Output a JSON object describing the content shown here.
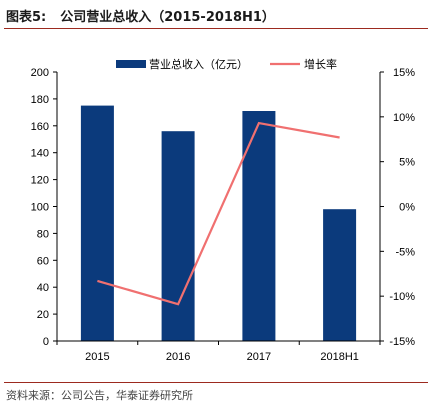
{
  "figure": {
    "number_label": "图表5:",
    "title": "公司营业总收入（2015-2018H1）",
    "source": "资料来源：公司公告，华泰证券研究所"
  },
  "colors": {
    "bar": "#0b3a7c",
    "line": "#f07070",
    "rule": "#9c2a1f"
  },
  "chart_data": {
    "type": "bar",
    "categories": [
      "2015",
      "2016",
      "2017",
      "2018H1"
    ],
    "series": [
      {
        "name": "营业总收入（亿元）",
        "type": "bar",
        "axis": "left",
        "values": [
          175,
          156,
          171,
          98
        ]
      },
      {
        "name": "增长率",
        "type": "line",
        "axis": "right",
        "values": [
          -8.3,
          -10.9,
          9.3,
          7.7
        ]
      }
    ],
    "ylim": [
      0,
      200
    ],
    "yticks": [
      "0",
      "20",
      "40",
      "60",
      "80",
      "100",
      "120",
      "140",
      "160",
      "180",
      "200"
    ],
    "y2lim": [
      -15,
      15
    ],
    "y2ticks": [
      "-15%",
      "-10%",
      "-5%",
      "0%",
      "5%",
      "10%",
      "15%"
    ],
    "grid": false,
    "legend": "top-center"
  }
}
